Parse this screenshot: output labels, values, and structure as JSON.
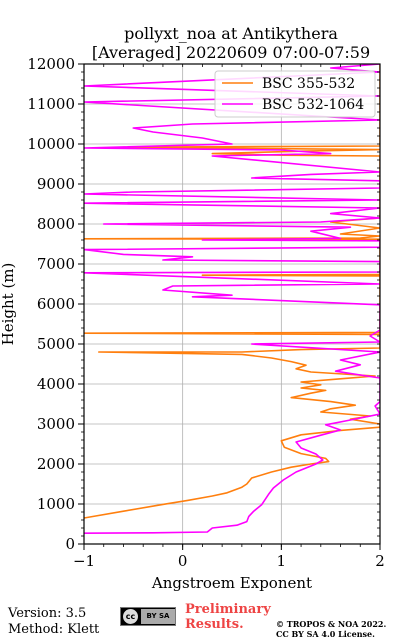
{
  "chart_data": {
    "type": "line",
    "title": "pollyxt_noa at Antikythera",
    "subtitle": "[Averaged] 20220609 07:00-07:59",
    "xlabel": "Angstroem Exponent",
    "ylabel": "Height (m)",
    "xlim": [
      -1,
      2
    ],
    "ylim": [
      0,
      12000
    ],
    "x_ticks": [
      "−1",
      "0",
      "1",
      "2"
    ],
    "y_ticks": [
      "0",
      "1000",
      "2000",
      "3000",
      "4000",
      "5000",
      "6000",
      "7000",
      "8000",
      "9000",
      "10000",
      "11000",
      "12000"
    ],
    "grid": true,
    "legend_position": "top-right",
    "series": [
      {
        "name": "BSC 355-532",
        "color": "#ff7f0e",
        "points": [
          [
            -1.0,
            650
          ],
          [
            -0.6,
            820
          ],
          [
            -0.2,
            990
          ],
          [
            0.05,
            1090
          ],
          [
            0.3,
            1200
          ],
          [
            0.45,
            1280
          ],
          [
            0.6,
            1420
          ],
          [
            0.65,
            1500
          ],
          [
            0.7,
            1650
          ],
          [
            0.9,
            1800
          ],
          [
            1.1,
            1920
          ],
          [
            1.3,
            2000
          ],
          [
            1.48,
            2060
          ],
          [
            1.45,
            2140
          ],
          [
            1.2,
            2260
          ],
          [
            1.03,
            2420
          ],
          [
            1.0,
            2580
          ],
          [
            1.2,
            2730
          ],
          [
            1.6,
            2840
          ],
          [
            2.0,
            2920
          ],
          [
            2.0,
            3000
          ],
          [
            1.7,
            3120
          ],
          [
            1.9,
            3200
          ],
          [
            1.4,
            3300
          ],
          [
            1.5,
            3380
          ],
          [
            1.75,
            3470
          ],
          [
            1.5,
            3560
          ],
          [
            1.1,
            3660
          ],
          [
            1.3,
            3770
          ],
          [
            1.45,
            3840
          ],
          [
            1.2,
            3900
          ],
          [
            1.4,
            3980
          ],
          [
            1.2,
            4050
          ],
          [
            1.6,
            4130
          ],
          [
            1.95,
            4200
          ],
          [
            1.3,
            4300
          ],
          [
            1.15,
            4380
          ],
          [
            1.25,
            4470
          ],
          [
            1.1,
            4560
          ],
          [
            0.9,
            4650
          ],
          [
            0.6,
            4740
          ],
          [
            -0.85,
            4800
          ],
          [
            0.6,
            4800
          ],
          [
            1.2,
            4860
          ],
          [
            2.0,
            4900
          ],
          [
            2.0,
            5240
          ],
          [
            -1.0,
            5270
          ],
          [
            2.0,
            5290
          ],
          [
            2.0,
            6700
          ],
          [
            0.2,
            6720
          ],
          [
            2.0,
            6740
          ],
          [
            2.0,
            7620
          ],
          [
            -1.0,
            7630
          ],
          [
            1.8,
            7650
          ],
          [
            2.0,
            7700
          ],
          [
            1.6,
            7750
          ],
          [
            2.0,
            7900
          ],
          [
            1.5,
            8050
          ],
          [
            2.0,
            8150
          ],
          [
            2.0,
            9700
          ],
          [
            1.0,
            9720
          ],
          [
            0.3,
            9760
          ],
          [
            1.2,
            9820
          ],
          [
            2.0,
            9860
          ],
          [
            -0.6,
            9920
          ],
          [
            1.2,
            9940
          ],
          [
            2.0,
            9950
          ],
          [
            2.0,
            12000
          ]
        ]
      },
      {
        "name": "BSC 532-1064",
        "color": "#ff00ff",
        "points": [
          [
            -1.0,
            270
          ],
          [
            -0.3,
            280
          ],
          [
            0.25,
            300
          ],
          [
            0.3,
            400
          ],
          [
            0.55,
            470
          ],
          [
            0.65,
            560
          ],
          [
            0.67,
            690
          ],
          [
            0.72,
            820
          ],
          [
            0.8,
            980
          ],
          [
            0.87,
            1240
          ],
          [
            0.92,
            1400
          ],
          [
            1.02,
            1600
          ],
          [
            1.15,
            1800
          ],
          [
            1.35,
            2000
          ],
          [
            1.42,
            2100
          ],
          [
            1.35,
            2250
          ],
          [
            1.2,
            2400
          ],
          [
            1.15,
            2550
          ],
          [
            1.4,
            2720
          ],
          [
            1.6,
            2850
          ],
          [
            1.45,
            2980
          ],
          [
            1.7,
            3100
          ],
          [
            2.0,
            3250
          ],
          [
            1.95,
            3450
          ],
          [
            2.0,
            3560
          ],
          [
            2.0,
            4150
          ],
          [
            1.55,
            4320
          ],
          [
            1.8,
            4480
          ],
          [
            1.6,
            4600
          ],
          [
            2.0,
            4800
          ],
          [
            0.7,
            5000
          ],
          [
            2.0,
            5050
          ],
          [
            1.9,
            5200
          ],
          [
            2.0,
            5350
          ],
          [
            2.0,
            5980
          ],
          [
            0.1,
            6180
          ],
          [
            0.5,
            6220
          ],
          [
            -0.2,
            6350
          ],
          [
            -0.1,
            6450
          ],
          [
            2.0,
            6500
          ],
          [
            -1.0,
            6780
          ],
          [
            2.0,
            6800
          ],
          [
            2.0,
            7060
          ],
          [
            -0.2,
            7100
          ],
          [
            0.1,
            7180
          ],
          [
            -0.6,
            7240
          ],
          [
            -1.0,
            7360
          ],
          [
            2.0,
            7420
          ],
          [
            2.0,
            7580
          ],
          [
            0.2,
            7600
          ],
          [
            1.6,
            7640
          ],
          [
            1.3,
            7820
          ],
          [
            1.7,
            7920
          ],
          [
            -0.8,
            8000
          ],
          [
            1.4,
            8050
          ],
          [
            2.0,
            8150
          ],
          [
            1.5,
            8260
          ],
          [
            2.0,
            8400
          ],
          [
            -1.0,
            8520
          ],
          [
            2.0,
            8600
          ],
          [
            -1.0,
            8750
          ],
          [
            -0.5,
            8800
          ],
          [
            2.0,
            8900
          ],
          [
            2.0,
            9080
          ],
          [
            0.7,
            9150
          ],
          [
            1.3,
            9240
          ],
          [
            2.0,
            9300
          ],
          [
            0.3,
            9700
          ],
          [
            1.5,
            9760
          ],
          [
            1.0,
            9850
          ],
          [
            -1.0,
            9900
          ],
          [
            0.5,
            10000
          ],
          [
            0.2,
            10150
          ],
          [
            -0.3,
            10300
          ],
          [
            -0.5,
            10400
          ],
          [
            0.1,
            10500
          ],
          [
            2.0,
            10600
          ],
          [
            -1.0,
            11050
          ],
          [
            2.0,
            11200
          ],
          [
            -1.0,
            11450
          ],
          [
            2.0,
            11800
          ],
          [
            1.5,
            11900
          ],
          [
            2.0,
            12000
          ]
        ]
      }
    ]
  },
  "footer": {
    "version": "Version: 3.5",
    "method": "Method: Klett",
    "preliminary_line1": "Preliminary",
    "preliminary_line2": "Results.",
    "copyright_line1": "© TROPOS & NOA 2022.",
    "copyright_line2": "CC BY SA 4.0 License.",
    "license_badge": {
      "cc": "cc",
      "by": "BY SA"
    }
  }
}
